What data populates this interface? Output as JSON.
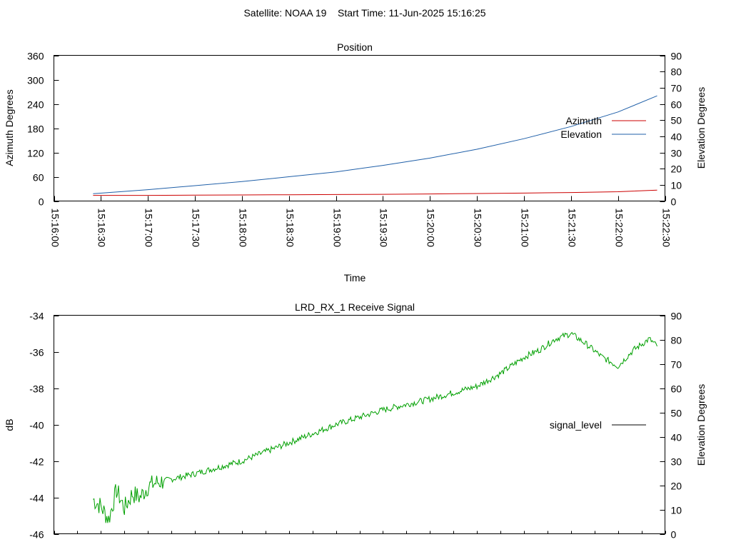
{
  "figure": {
    "title": "Satellite: NOAA 19    Start Time: 11-Jun-2025 15:16:25"
  },
  "chart_data": [
    {
      "type": "line",
      "title": "Position",
      "xlabel": "Time",
      "ylabel": "Azimuth Degrees",
      "y2label": "Elevation Degrees",
      "xticks": [
        "15:16:00",
        "15:16:30",
        "15:17:00",
        "15:17:30",
        "15:18:00",
        "15:18:30",
        "15:19:00",
        "15:19:30",
        "15:20:00",
        "15:20:30",
        "15:21:00",
        "15:21:30",
        "15:22:00",
        "15:22:30"
      ],
      "xlim": [
        "15:16:00",
        "15:22:30"
      ],
      "ylim": [
        0,
        360
      ],
      "yticks": [
        0,
        60,
        120,
        180,
        240,
        300,
        360
      ],
      "y2lim": [
        0,
        90
      ],
      "y2ticks": [
        0,
        10,
        20,
        30,
        40,
        50,
        60,
        70,
        80,
        90
      ],
      "legend_position": "right",
      "series": [
        {
          "name": "Azimuth",
          "axis": "y",
          "color": "#cc0000",
          "x": [
            "15:16:25",
            "15:17:00",
            "15:17:30",
            "15:18:00",
            "15:18:30",
            "15:19:00",
            "15:19:30",
            "15:20:00",
            "15:20:30",
            "15:21:00",
            "15:21:30",
            "15:22:00",
            "15:22:25"
          ],
          "y": [
            14,
            14,
            14.5,
            15,
            15.5,
            16,
            16.5,
            17.5,
            18.5,
            19.5,
            21,
            23,
            27
          ]
        },
        {
          "name": "Elevation",
          "axis": "y2",
          "color": "#1f5fa8",
          "x": [
            "15:16:25",
            "15:17:00",
            "15:17:30",
            "15:18:00",
            "15:18:30",
            "15:19:00",
            "15:19:30",
            "15:20:00",
            "15:20:30",
            "15:21:00",
            "15:21:30",
            "15:22:00",
            "15:22:25"
          ],
          "y": [
            4.5,
            7,
            9.5,
            12,
            15,
            18,
            22,
            26.5,
            32,
            38.5,
            46,
            55,
            65
          ]
        }
      ]
    },
    {
      "type": "line",
      "title": "LRD_RX_1 Receive Signal",
      "ylabel": "dB",
      "y2label": "Elevation Degrees",
      "xlim": [
        "15:16:00",
        "15:22:30"
      ],
      "ylim": [
        -46,
        -34
      ],
      "yticks": [
        -46,
        -44,
        -42,
        -40,
        -38,
        -36,
        -34
      ],
      "y2lim": [
        0,
        90
      ],
      "y2ticks": [
        0,
        10,
        20,
        30,
        40,
        50,
        60,
        70,
        80,
        90
      ],
      "legend_position": "right",
      "series": [
        {
          "name": "signal_level",
          "axis": "y",
          "color": "#00a000",
          "x": [
            "15:16:25",
            "15:16:30",
            "15:16:35",
            "15:16:40",
            "15:16:45",
            "15:16:50",
            "15:16:55",
            "15:17:00",
            "15:17:05",
            "15:17:30",
            "15:18:00",
            "15:18:30",
            "15:19:00",
            "15:19:30",
            "15:20:00",
            "15:20:30",
            "15:20:45",
            "15:21:00",
            "15:21:10",
            "15:21:20",
            "15:21:30",
            "15:21:40",
            "15:21:50",
            "15:22:00",
            "15:22:10",
            "15:22:20",
            "15:22:25"
          ],
          "y": [
            -44.1,
            -44.5,
            -45.2,
            -43.6,
            -44.6,
            -43.8,
            -44.0,
            -43.4,
            -43.2,
            -42.7,
            -42.0,
            -41.0,
            -40.0,
            -39.2,
            -38.6,
            -37.9,
            -37.2,
            -36.3,
            -35.9,
            -35.3,
            -35.0,
            -35.6,
            -36.3,
            -36.8,
            -35.9,
            -35.3,
            -35.7
          ]
        }
      ]
    }
  ]
}
